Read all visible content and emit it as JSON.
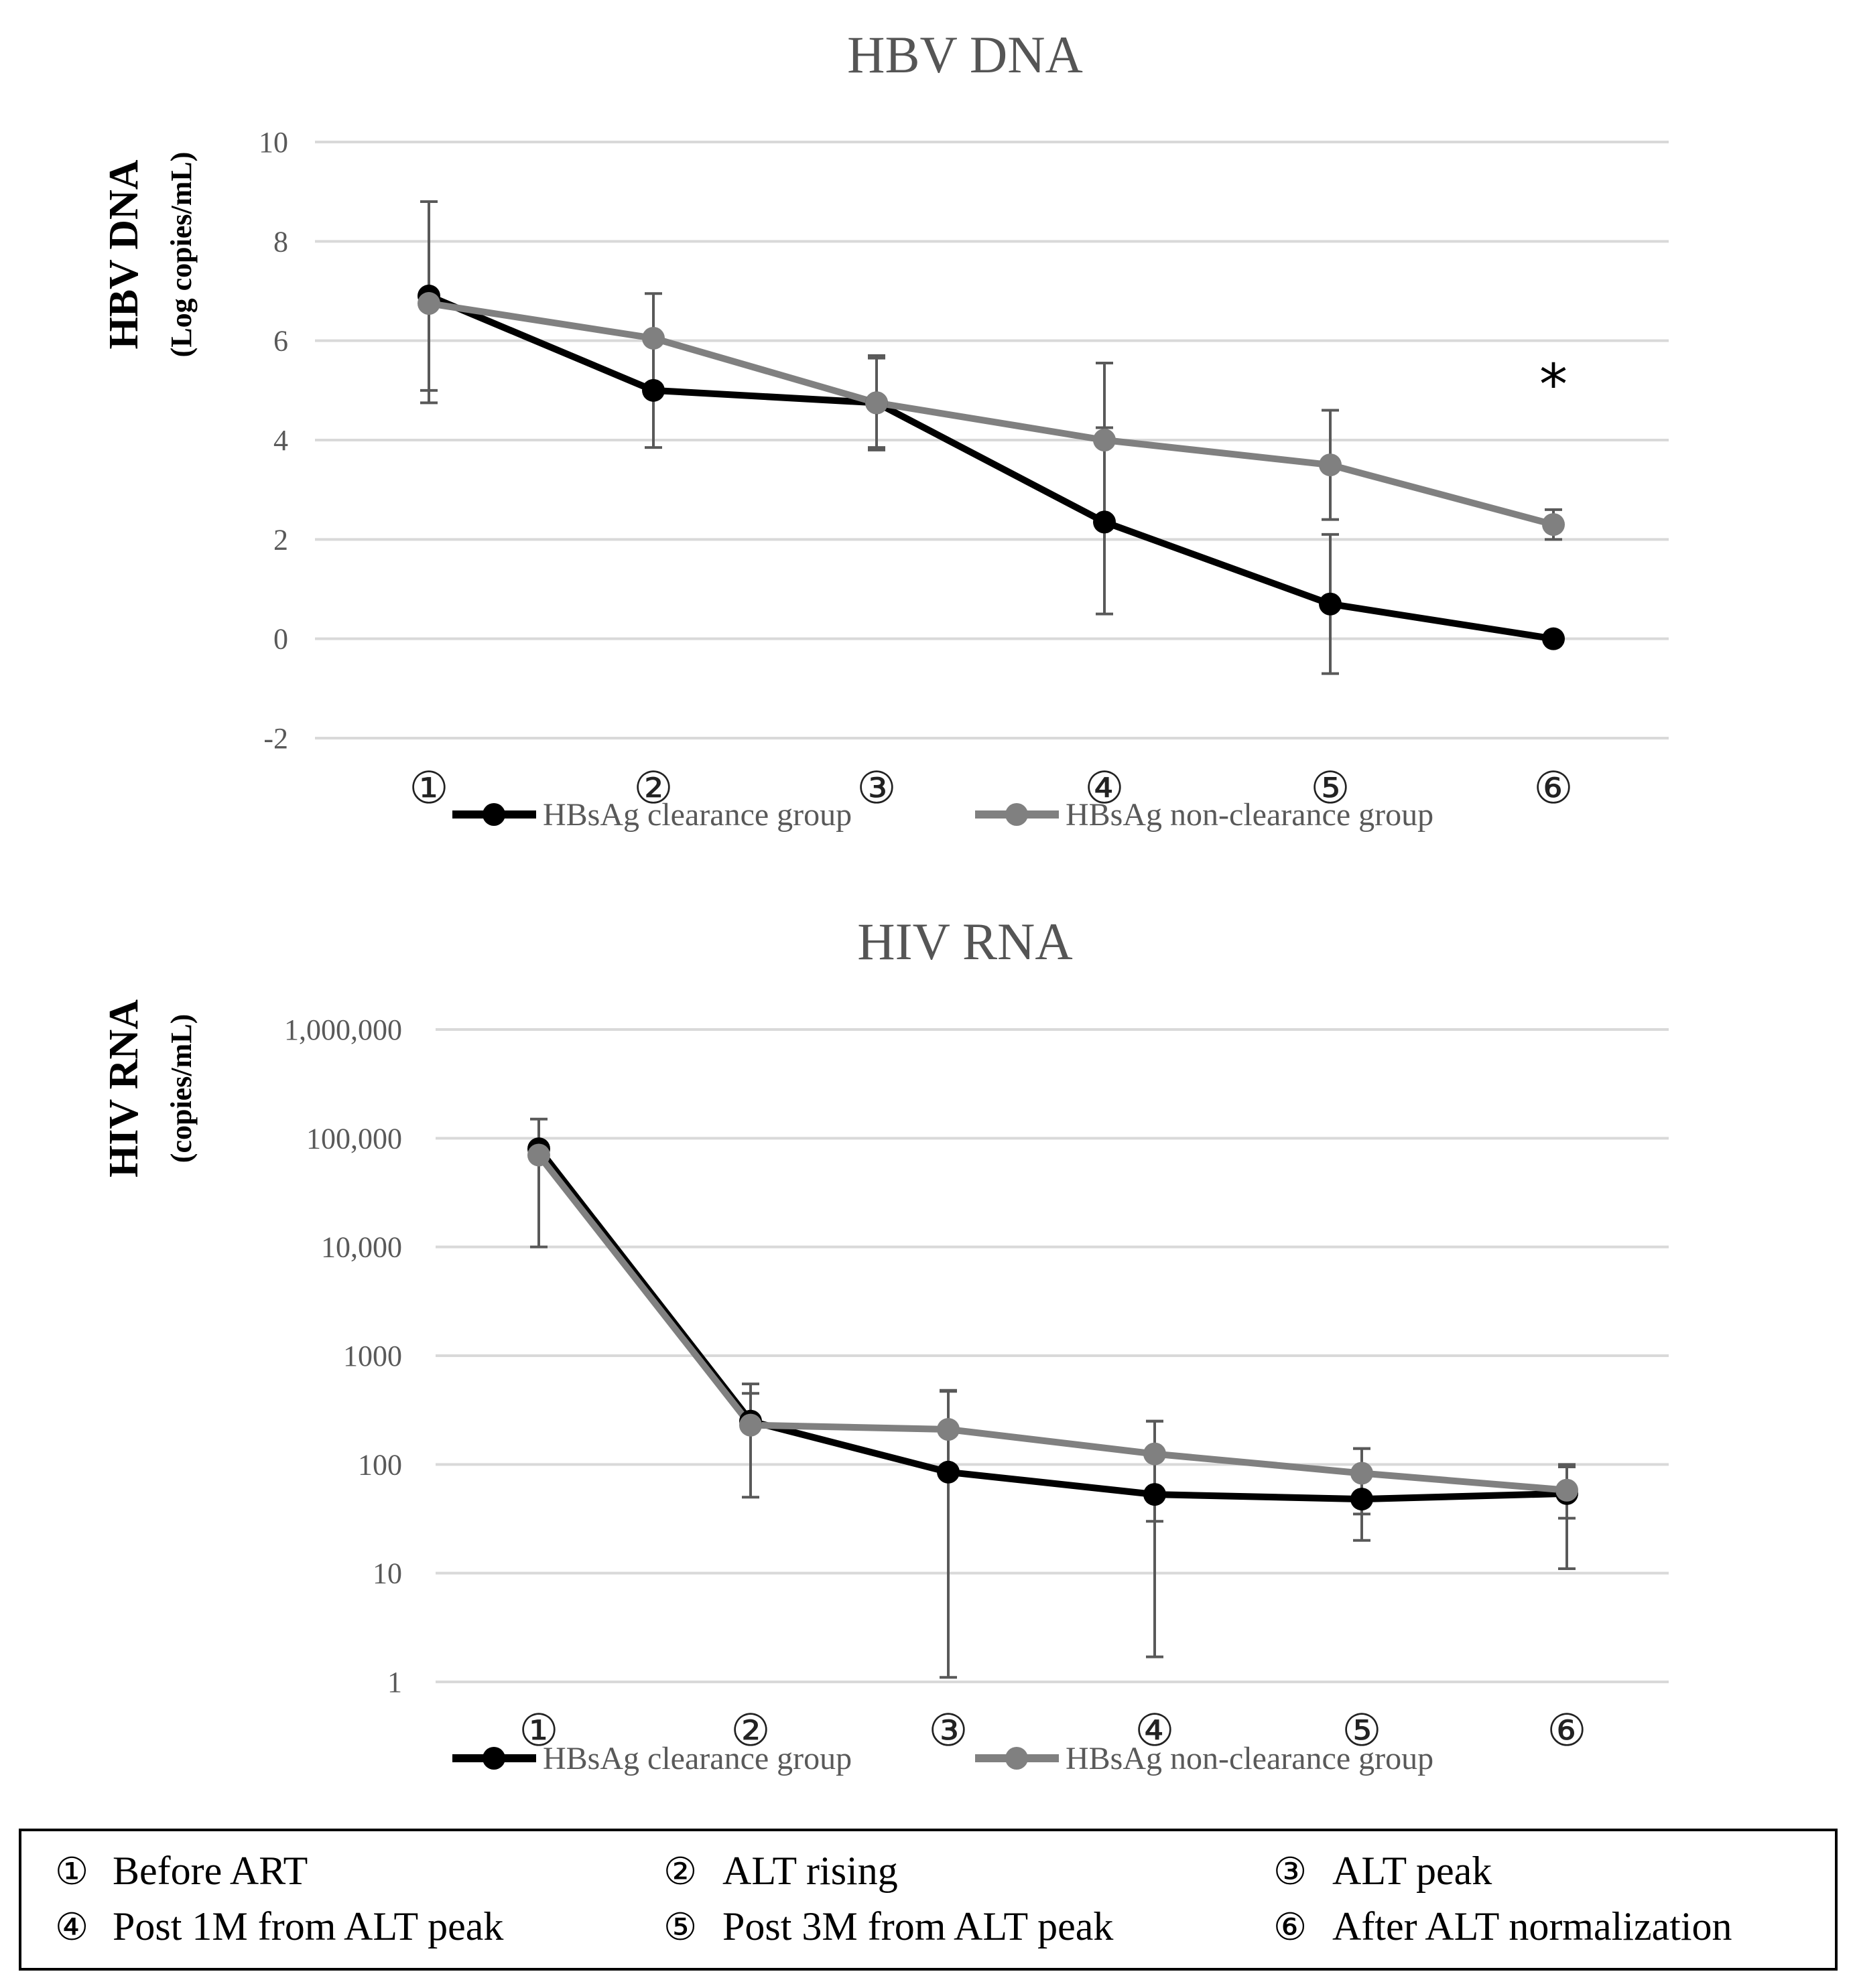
{
  "chart_data": [
    {
      "type": "line",
      "title": "HBV DNA",
      "ylabel": "HBV DNA",
      "ylabel_unit": "(Log copies/mL)",
      "yscale": "linear",
      "ylim": [
        -2,
        10
      ],
      "yticks": [
        "10",
        "8",
        "6",
        "4",
        "2",
        "0",
        "-2"
      ],
      "ytick_values": [
        10,
        8,
        6,
        4,
        2,
        0,
        -2
      ],
      "categories": [
        "①",
        "②",
        "③",
        "④",
        "⑤",
        "⑥"
      ],
      "annotation": "*",
      "annotation_category_index": 5,
      "annotation_value": 5.4,
      "series": [
        {
          "name": "HBsAg clearance group",
          "color": "#000000",
          "values": [
            6.9,
            5.0,
            4.75,
            2.35,
            0.7,
            0.0
          ],
          "error_low": [
            5.0,
            3.85,
            3.8,
            0.5,
            -0.7,
            0.0
          ],
          "error_high": [
            8.8,
            5.0,
            5.7,
            4.25,
            2.1,
            0.0
          ]
        },
        {
          "name": "HBsAg non-clearance group",
          "color": "#808080",
          "values": [
            6.75,
            6.05,
            4.75,
            4.0,
            3.5,
            2.3
          ],
          "error_low": [
            4.75,
            5.0,
            3.85,
            2.35,
            2.4,
            2.0
          ],
          "error_high": [
            6.75,
            6.95,
            5.65,
            5.55,
            4.6,
            2.6
          ]
        }
      ]
    },
    {
      "type": "line",
      "title": "HIV RNA",
      "ylabel": "HIV RNA",
      "ylabel_unit": "(copies/mL)",
      "yscale": "log10",
      "ylim": [
        1,
        1000000
      ],
      "yticks": [
        "1,000,000",
        "100,000",
        "10,000",
        "1000",
        "100",
        "10",
        "1"
      ],
      "ytick_values": [
        1000000,
        100000,
        10000,
        1000,
        100,
        10,
        1
      ],
      "categories": [
        "①",
        "②",
        "③",
        "④",
        "⑤",
        "⑥"
      ],
      "series": [
        {
          "name": "HBsAg clearance group",
          "color": "#000000",
          "values": [
            80000,
            250,
            85,
            53,
            48,
            54
          ],
          "error_low": [
            10000,
            50,
            1.1,
            1.7,
            20,
            11
          ],
          "error_high": [
            150000,
            550,
            470,
            250,
            140,
            100
          ]
        },
        {
          "name": "HBsAg non-clearance group",
          "color": "#808080",
          "values": [
            70000,
            230,
            210,
            125,
            83,
            58
          ],
          "error_low": [
            70000,
            230,
            210,
            30,
            35,
            32
          ],
          "error_high": [
            70000,
            450,
            480,
            250,
            140,
            95
          ]
        }
      ]
    }
  ],
  "key": {
    "items": [
      {
        "num": "①",
        "label": "Before ART"
      },
      {
        "num": "②",
        "label": "ALT rising"
      },
      {
        "num": "③",
        "label": "ALT peak"
      },
      {
        "num": "④",
        "label": "Post 1M from ALT peak"
      },
      {
        "num": "⑤",
        "label": "Post 3M from ALT peak"
      },
      {
        "num": "⑥",
        "label": "After ALT normalization"
      }
    ]
  }
}
